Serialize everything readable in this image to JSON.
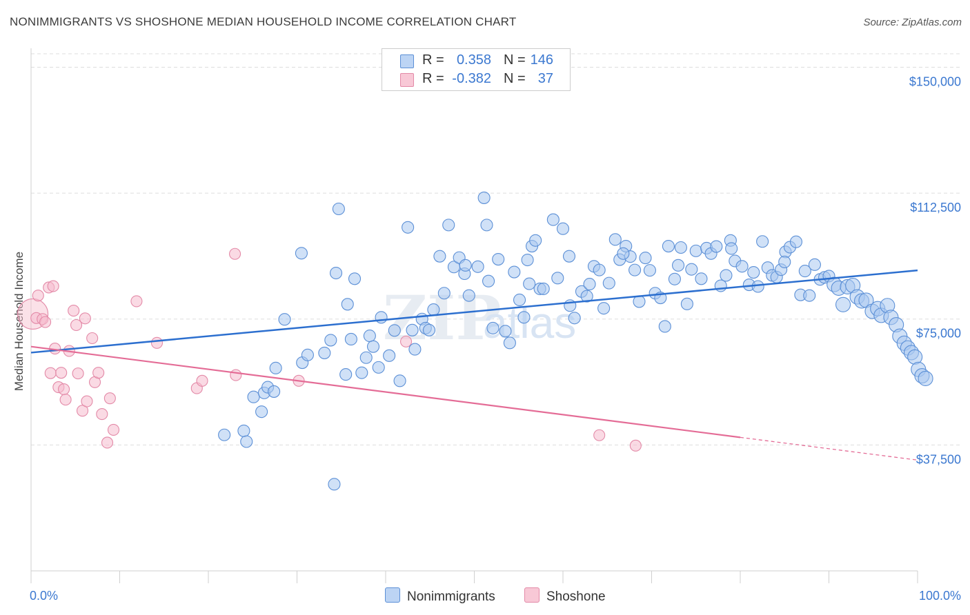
{
  "header": {
    "title": "NONIMMIGRANTS VS SHOSHONE MEDIAN HOUSEHOLD INCOME CORRELATION CHART",
    "source": "Source: ZipAtlas.com"
  },
  "watermark": {
    "zip": "ZIP",
    "atlas": "atlas"
  },
  "legend_top": {
    "rows": [
      {
        "r_label": "R =",
        "r_value": "0.358",
        "n_label": "N =",
        "n_value": "146"
      },
      {
        "r_label": "R =",
        "r_value": "-0.382",
        "n_label": "N =",
        "n_value": "37"
      }
    ]
  },
  "legend_bottom": {
    "items": [
      {
        "label": "Nonimmigrants"
      },
      {
        "label": "Shoshone"
      }
    ]
  },
  "colors": {
    "blue_fill": "#aac8f0",
    "blue_stroke": "#5b8fd6",
    "blue_line": "#2c6fcf",
    "pink_fill": "#f6bccd",
    "pink_stroke": "#e389a7",
    "pink_line": "#e46c96",
    "tick_text": "#3b78d0",
    "grid": "#dddddd"
  },
  "chart_data": {
    "type": "scatter",
    "title": "NONIMMIGRANTS VS SHOSHONE MEDIAN HOUSEHOLD INCOME CORRELATION CHART",
    "xlabel": "",
    "ylabel": "Median Household Income",
    "xlim": [
      0,
      100
    ],
    "ylim": [
      0,
      154000
    ],
    "x_tick_labels": [
      "0.0%",
      "100.0%"
    ],
    "y_ticks": [
      37500,
      75000,
      112500,
      150000
    ],
    "y_tick_labels": [
      "$37,500",
      "$75,000",
      "$112,500",
      "$150,000"
    ],
    "grid": true,
    "series": [
      {
        "name": "Nonimmigrants",
        "r": 0.358,
        "n": 146,
        "trend": {
          "x": [
            0,
            100
          ],
          "y": [
            65000,
            89500
          ],
          "dashed_from": null
        },
        "points": [
          [
            21.8,
            40500
          ],
          [
            24.0,
            41700
          ],
          [
            24.3,
            38500
          ],
          [
            25.1,
            51800
          ],
          [
            26.0,
            47400
          ],
          [
            26.3,
            53000
          ],
          [
            26.7,
            54700
          ],
          [
            27.4,
            53400
          ],
          [
            27.6,
            60400
          ],
          [
            28.6,
            74900
          ],
          [
            30.5,
            94600
          ],
          [
            30.6,
            62000
          ],
          [
            31.2,
            64300
          ],
          [
            33.1,
            64900
          ],
          [
            33.8,
            68700
          ],
          [
            34.2,
            25800
          ],
          [
            34.4,
            88700
          ],
          [
            34.7,
            107800
          ],
          [
            35.5,
            58500
          ],
          [
            35.7,
            79400
          ],
          [
            36.1,
            69000
          ],
          [
            37.3,
            59000
          ],
          [
            37.8,
            63500
          ],
          [
            38.2,
            70000
          ],
          [
            38.6,
            66800
          ],
          [
            39.2,
            60600
          ],
          [
            39.5,
            75500
          ],
          [
            40.4,
            64100
          ],
          [
            41.0,
            71600
          ],
          [
            41.6,
            56600
          ],
          [
            42.5,
            102300
          ],
          [
            43.0,
            71700
          ],
          [
            43.3,
            66000
          ],
          [
            44.1,
            75000
          ],
          [
            44.5,
            72300
          ],
          [
            44.9,
            71700
          ],
          [
            45.4,
            77800
          ],
          [
            46.1,
            93700
          ],
          [
            47.1,
            103000
          ],
          [
            47.7,
            90500
          ],
          [
            48.3,
            93300
          ],
          [
            48.9,
            88500
          ],
          [
            49.0,
            91000
          ],
          [
            49.4,
            82000
          ],
          [
            50.4,
            90600
          ],
          [
            51.1,
            111100
          ],
          [
            51.4,
            103000
          ],
          [
            51.6,
            86300
          ],
          [
            52.1,
            72300
          ],
          [
            52.7,
            92800
          ],
          [
            53.5,
            71400
          ],
          [
            54.0,
            67900
          ],
          [
            54.5,
            89000
          ],
          [
            55.1,
            80700
          ],
          [
            55.6,
            75500
          ],
          [
            56.0,
            92600
          ],
          [
            56.5,
            96700
          ],
          [
            56.9,
            98400
          ],
          [
            57.4,
            84000
          ],
          [
            57.8,
            84000
          ],
          [
            58.9,
            104600
          ],
          [
            59.4,
            87200
          ],
          [
            60.0,
            101900
          ],
          [
            60.7,
            93700
          ],
          [
            61.3,
            75300
          ],
          [
            62.1,
            83200
          ],
          [
            62.7,
            81800
          ],
          [
            63.0,
            85400
          ],
          [
            63.5,
            90700
          ],
          [
            64.1,
            89600
          ],
          [
            64.6,
            78200
          ],
          [
            65.2,
            85700
          ],
          [
            65.9,
            98700
          ],
          [
            66.4,
            92700
          ],
          [
            67.1,
            96700
          ],
          [
            67.6,
            93600
          ],
          [
            68.1,
            89600
          ],
          [
            68.6,
            80200
          ],
          [
            69.3,
            93200
          ],
          [
            69.8,
            89500
          ],
          [
            70.4,
            82700
          ],
          [
            71.0,
            81300
          ],
          [
            71.5,
            72800
          ],
          [
            71.9,
            96700
          ],
          [
            72.6,
            86900
          ],
          [
            73.3,
            96300
          ],
          [
            74.0,
            79500
          ],
          [
            74.5,
            89800
          ],
          [
            75.0,
            95300
          ],
          [
            75.6,
            87000
          ],
          [
            76.2,
            96100
          ],
          [
            76.7,
            94500
          ],
          [
            77.3,
            96600
          ],
          [
            77.8,
            84900
          ],
          [
            78.4,
            88000
          ],
          [
            78.9,
            98400
          ],
          [
            79.4,
            92300
          ],
          [
            80.2,
            90700
          ],
          [
            81.0,
            85200
          ],
          [
            81.5,
            88900
          ],
          [
            82.0,
            84700
          ],
          [
            82.5,
            98100
          ],
          [
            83.1,
            90300
          ],
          [
            83.6,
            88000
          ],
          [
            84.1,
            87500
          ],
          [
            84.6,
            89700
          ],
          [
            85.1,
            95000
          ],
          [
            85.6,
            96400
          ],
          [
            86.3,
            98000
          ],
          [
            86.8,
            82200
          ],
          [
            87.3,
            89300
          ],
          [
            87.8,
            82000
          ],
          [
            88.4,
            91200
          ],
          [
            89.0,
            86800
          ],
          [
            89.5,
            87400
          ],
          [
            90.0,
            87800
          ],
          [
            90.6,
            85300
          ],
          [
            91.1,
            84200
          ],
          [
            91.6,
            79300
          ],
          [
            92.1,
            84600
          ],
          [
            92.7,
            85000
          ],
          [
            93.2,
            81600
          ],
          [
            93.7,
            80400
          ],
          [
            94.2,
            80600
          ],
          [
            94.9,
            77300
          ],
          [
            95.5,
            78100
          ],
          [
            95.9,
            76100
          ],
          [
            96.6,
            79000
          ],
          [
            97.0,
            75500
          ],
          [
            97.6,
            73300
          ],
          [
            98.0,
            69900
          ],
          [
            98.5,
            67800
          ],
          [
            98.9,
            66400
          ],
          [
            99.3,
            65000
          ],
          [
            99.7,
            63700
          ],
          [
            100.1,
            60000
          ],
          [
            100.5,
            58100
          ],
          [
            100.9,
            57300
          ],
          [
            36.5,
            87000
          ],
          [
            66.8,
            94500
          ],
          [
            85.0,
            92000
          ],
          [
            79.0,
            96000
          ],
          [
            56.2,
            85500
          ],
          [
            60.8,
            79000
          ],
          [
            73.0,
            91000
          ],
          [
            46.6,
            82700
          ]
        ]
      },
      {
        "name": "Shoshone",
        "r": -0.382,
        "n": 37,
        "trend": {
          "x": [
            0,
            100
          ],
          "y": [
            66800,
            33000
          ],
          "dashed_from": 80
        },
        "points": [
          [
            0.2,
            76500
          ],
          [
            0.6,
            75300
          ],
          [
            0.8,
            82000
          ],
          [
            1.3,
            75000
          ],
          [
            1.6,
            74100
          ],
          [
            2.0,
            84400
          ],
          [
            2.2,
            58900
          ],
          [
            2.5,
            84800
          ],
          [
            2.7,
            66200
          ],
          [
            3.1,
            54700
          ],
          [
            3.4,
            59000
          ],
          [
            3.7,
            54100
          ],
          [
            3.9,
            51000
          ],
          [
            4.3,
            65500
          ],
          [
            4.8,
            77500
          ],
          [
            5.1,
            73200
          ],
          [
            5.3,
            58800
          ],
          [
            5.8,
            47700
          ],
          [
            6.1,
            75200
          ],
          [
            6.3,
            50500
          ],
          [
            6.9,
            69300
          ],
          [
            7.2,
            56200
          ],
          [
            7.6,
            59000
          ],
          [
            8.0,
            46700
          ],
          [
            8.6,
            38200
          ],
          [
            8.9,
            51400
          ],
          [
            9.3,
            42000
          ],
          [
            11.9,
            80300
          ],
          [
            14.2,
            67900
          ],
          [
            18.7,
            54400
          ],
          [
            19.3,
            56600
          ],
          [
            23.0,
            94400
          ],
          [
            23.1,
            58300
          ],
          [
            30.2,
            56600
          ],
          [
            42.3,
            68300
          ],
          [
            64.1,
            40400
          ],
          [
            68.2,
            37300
          ]
        ]
      }
    ]
  }
}
